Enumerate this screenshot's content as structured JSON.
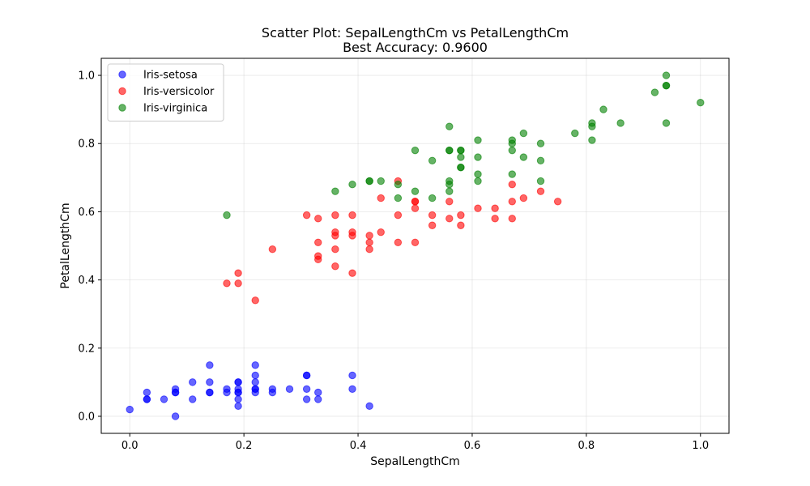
{
  "chart_data": {
    "type": "scatter",
    "title": "Scatter Plot: SepalLengthCm vs PetalLengthCm",
    "subtitle": "Best Accuracy: 0.9600",
    "xlabel": "SepalLengthCm",
    "ylabel": "PetalLengthCm",
    "xlim": [
      -0.05,
      1.05
    ],
    "ylim": [
      -0.05,
      1.05
    ],
    "xticks": [
      0.0,
      0.2,
      0.4,
      0.6,
      0.8,
      1.0
    ],
    "yticks": [
      0.0,
      0.2,
      0.4,
      0.6,
      0.8,
      1.0
    ],
    "xtick_labels": [
      "0.0",
      "0.2",
      "0.4",
      "0.6",
      "0.8",
      "1.0"
    ],
    "ytick_labels": [
      "0.0",
      "0.2",
      "0.4",
      "0.6",
      "0.8",
      "1.0"
    ],
    "grid": true,
    "legend_position": "top-left",
    "series": [
      {
        "name": "Iris-setosa",
        "color": "#0000ff",
        "x": [
          0.0,
          0.03,
          0.03,
          0.03,
          0.06,
          0.08,
          0.08,
          0.08,
          0.08,
          0.11,
          0.11,
          0.14,
          0.14,
          0.14,
          0.14,
          0.17,
          0.17,
          0.19,
          0.19,
          0.19,
          0.19,
          0.19,
          0.19,
          0.19,
          0.22,
          0.22,
          0.22,
          0.22,
          0.22,
          0.22,
          0.25,
          0.25,
          0.28,
          0.31,
          0.31,
          0.31,
          0.31,
          0.33,
          0.33,
          0.39,
          0.39,
          0.42
        ],
        "y": [
          0.02,
          0.05,
          0.05,
          0.07,
          0.05,
          0.0,
          0.07,
          0.07,
          0.08,
          0.1,
          0.05,
          0.15,
          0.1,
          0.07,
          0.07,
          0.08,
          0.07,
          0.1,
          0.1,
          0.08,
          0.07,
          0.07,
          0.05,
          0.03,
          0.15,
          0.12,
          0.1,
          0.08,
          0.08,
          0.07,
          0.08,
          0.07,
          0.08,
          0.12,
          0.12,
          0.08,
          0.05,
          0.07,
          0.05,
          0.12,
          0.08,
          0.03
        ]
      },
      {
        "name": "Iris-versicolor",
        "color": "#ff0000",
        "x": [
          0.17,
          0.19,
          0.19,
          0.22,
          0.25,
          0.31,
          0.33,
          0.33,
          0.33,
          0.33,
          0.36,
          0.36,
          0.36,
          0.36,
          0.36,
          0.39,
          0.39,
          0.39,
          0.39,
          0.42,
          0.42,
          0.42,
          0.44,
          0.44,
          0.47,
          0.47,
          0.47,
          0.5,
          0.5,
          0.5,
          0.5,
          0.53,
          0.53,
          0.56,
          0.56,
          0.58,
          0.58,
          0.61,
          0.64,
          0.64,
          0.67,
          0.67,
          0.67,
          0.69,
          0.72,
          0.75
        ],
        "y": [
          0.39,
          0.42,
          0.39,
          0.34,
          0.49,
          0.59,
          0.58,
          0.51,
          0.47,
          0.46,
          0.59,
          0.54,
          0.53,
          0.49,
          0.44,
          0.59,
          0.54,
          0.53,
          0.42,
          0.53,
          0.51,
          0.49,
          0.64,
          0.54,
          0.69,
          0.59,
          0.51,
          0.63,
          0.63,
          0.61,
          0.51,
          0.59,
          0.56,
          0.63,
          0.58,
          0.59,
          0.56,
          0.61,
          0.61,
          0.58,
          0.68,
          0.63,
          0.58,
          0.64,
          0.66,
          0.63
        ]
      },
      {
        "name": "Iris-virginica",
        "color": "#008000",
        "x": [
          0.17,
          0.36,
          0.39,
          0.42,
          0.42,
          0.44,
          0.47,
          0.47,
          0.5,
          0.5,
          0.53,
          0.53,
          0.56,
          0.56,
          0.56,
          0.56,
          0.56,
          0.56,
          0.58,
          0.58,
          0.58,
          0.58,
          0.58,
          0.61,
          0.61,
          0.61,
          0.61,
          0.67,
          0.67,
          0.67,
          0.67,
          0.69,
          0.69,
          0.72,
          0.72,
          0.72,
          0.78,
          0.81,
          0.81,
          0.81,
          0.83,
          0.86,
          0.92,
          0.94,
          0.94,
          0.94,
          0.94,
          1.0
        ],
        "y": [
          0.59,
          0.66,
          0.68,
          0.69,
          0.69,
          0.69,
          0.68,
          0.64,
          0.78,
          0.66,
          0.75,
          0.64,
          0.85,
          0.78,
          0.78,
          0.69,
          0.68,
          0.66,
          0.78,
          0.78,
          0.76,
          0.73,
          0.73,
          0.81,
          0.76,
          0.71,
          0.69,
          0.81,
          0.8,
          0.78,
          0.71,
          0.83,
          0.76,
          0.8,
          0.75,
          0.69,
          0.83,
          0.86,
          0.85,
          0.81,
          0.9,
          0.86,
          0.95,
          1.0,
          0.97,
          0.97,
          0.86,
          0.92
        ]
      }
    ]
  }
}
